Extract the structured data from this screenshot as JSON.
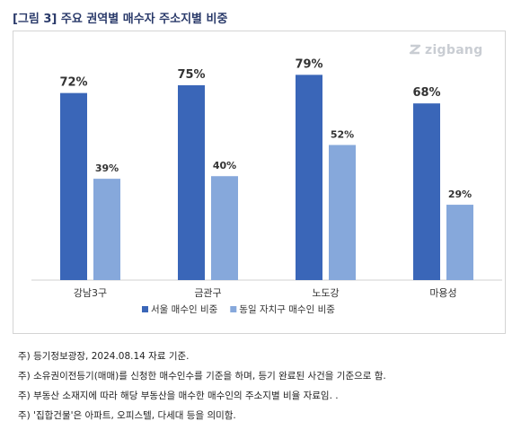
{
  "title": "[그림 3] 주요 권역별 매수자 주소지별 비중",
  "watermark": "zigbang",
  "colors": {
    "series1": "#3a66b8",
    "series2": "#86a8db",
    "axis": "#d0d0d0",
    "title": "#2a3a6a"
  },
  "chart_data": {
    "type": "bar",
    "categories": [
      "강남3구",
      "금관구",
      "노도강",
      "마용성"
    ],
    "series": [
      {
        "name": "서울 매수인 비중",
        "values": [
          72,
          75,
          79,
          68
        ],
        "labels": [
          "72%",
          "75%",
          "79%",
          "68%"
        ]
      },
      {
        "name": "동일 자치구 매수인 비중",
        "values": [
          39,
          40,
          52,
          29
        ],
        "labels": [
          "39%",
          "40%",
          "52%",
          "29%"
        ]
      }
    ],
    "ylim": [
      0,
      85
    ],
    "grid": false,
    "legend": "bottom"
  },
  "notes": [
    "주) 등기정보광장, 2024.08.14 자료 기준.",
    "주) 소유권이전등기(매매)를 신청한 매수인수를 기준을 하며, 등기 완료된 사건을 기준으로 함.",
    "주) 부동산 소재지에 따라 해당 부동산을 매수한 매수인의 주소지별 비율 자료임. .",
    "주)  '집합건물'은 아파트, 오피스텔, 다세대 등을 의미함."
  ]
}
